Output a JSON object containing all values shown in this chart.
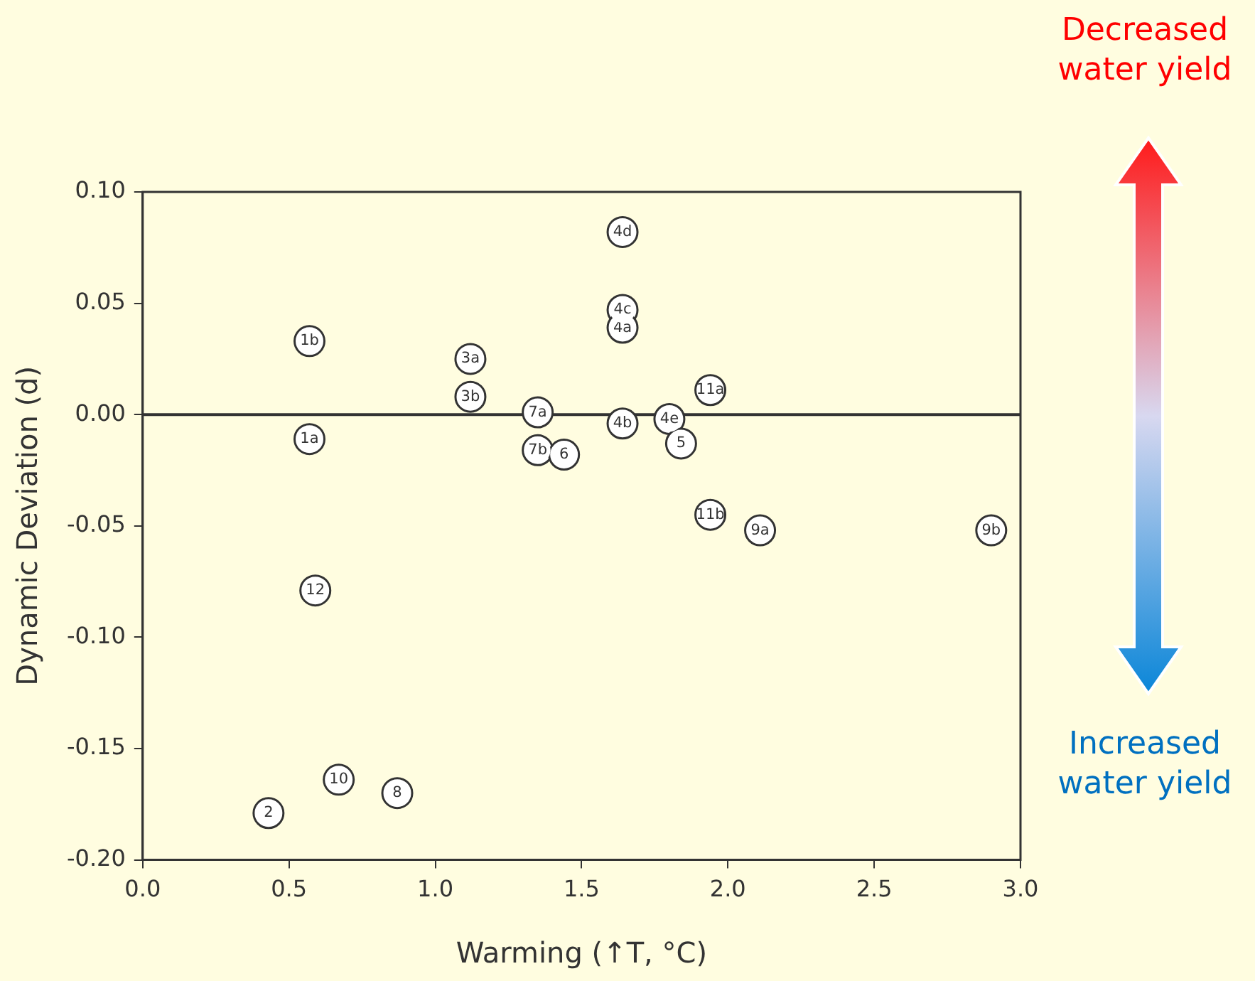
{
  "chart_data": {
    "type": "scatter",
    "xlabel": "Warming (↑T, °C)",
    "ylabel": "Dynamic Deviation (d)",
    "x": [
      0.57,
      0.57,
      0.59,
      0.43,
      0.67,
      0.87,
      1.12,
      1.12,
      1.35,
      1.35,
      1.44,
      1.64,
      1.64,
      1.64,
      1.64,
      1.8,
      1.84,
      1.94,
      1.94,
      2.11,
      2.9
    ],
    "series": [
      {
        "color": "#333333",
        "values": [
          0.033,
          -0.011,
          -0.079,
          -0.179,
          -0.164,
          -0.17,
          0.025,
          0.008,
          0.001,
          -0.016,
          -0.018,
          0.082,
          0.047,
          0.039,
          -0.004,
          -0.002,
          -0.013,
          0.011,
          -0.045,
          -0.052,
          -0.052
        ]
      }
    ],
    "marker": "circle",
    "grid": false,
    "legend": false,
    "xlim": [
      0,
      3
    ],
    "xticks": [
      {
        "value": 0,
        "label": "0.0"
      },
      {
        "value": 0.5,
        "label": "0.5"
      },
      {
        "value": 1,
        "label": "1.0"
      },
      {
        "value": 1.5,
        "label": "1.5"
      },
      {
        "value": 2,
        "label": "2.0"
      },
      {
        "value": 2.5,
        "label": "2.5"
      },
      {
        "value": 3,
        "label": "3.0"
      }
    ],
    "ylim": [
      -0.2,
      0.1
    ],
    "yticks": [
      {
        "value": -0.2,
        "label": "-0.20"
      },
      {
        "value": -0.15,
        "label": "-0.15"
      },
      {
        "value": -0.1,
        "label": "-0.10"
      },
      {
        "value": -0.05,
        "label": "-0.05"
      },
      {
        "value": 0,
        "label": "0.00"
      },
      {
        "value": 0.05,
        "label": "0.05"
      },
      {
        "value": 0.1,
        "label": "0.10"
      }
    ],
    "ref_lines": [
      {
        "axis": "y",
        "value": 0,
        "color": "#333333"
      }
    ],
    "annotations": [
      {
        "text": "1b",
        "x": 0.57,
        "y": 0.033
      },
      {
        "text": "1a",
        "x": 0.57,
        "y": -0.011
      },
      {
        "text": "12",
        "x": 0.59,
        "y": -0.079
      },
      {
        "text": "2",
        "x": 0.43,
        "y": -0.179
      },
      {
        "text": "10",
        "x": 0.67,
        "y": -0.164
      },
      {
        "text": "8",
        "x": 0.87,
        "y": -0.17
      },
      {
        "text": "3a",
        "x": 1.12,
        "y": 0.025
      },
      {
        "text": "3b",
        "x": 1.12,
        "y": 0.008
      },
      {
        "text": "7a",
        "x": 1.35,
        "y": 0.001
      },
      {
        "text": "7b",
        "x": 1.35,
        "y": -0.016
      },
      {
        "text": "6",
        "x": 1.44,
        "y": -0.018
      },
      {
        "text": "4d",
        "x": 1.64,
        "y": 0.082
      },
      {
        "text": "4c",
        "x": 1.64,
        "y": 0.047
      },
      {
        "text": "4a",
        "x": 1.64,
        "y": 0.039
      },
      {
        "text": "4b",
        "x": 1.64,
        "y": -0.004
      },
      {
        "text": "4e",
        "x": 1.8,
        "y": -0.002
      },
      {
        "text": "5",
        "x": 1.84,
        "y": -0.013
      },
      {
        "text": "11a",
        "x": 1.94,
        "y": 0.011
      },
      {
        "text": "11b",
        "x": 1.94,
        "y": -0.045
      },
      {
        "text": "9a",
        "x": 2.11,
        "y": -0.052
      },
      {
        "text": "9b",
        "x": 2.9,
        "y": -0.052
      },
      "Decreased water yield",
      "Increased water yield"
    ]
  }
}
